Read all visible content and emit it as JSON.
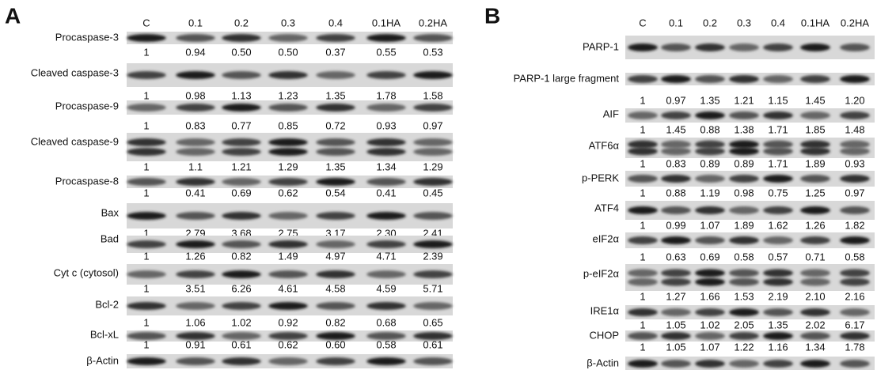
{
  "panels": [
    {
      "label": "A",
      "columns": [
        "C",
        "0.1",
        "0.2",
        "0.3",
        "0.4",
        "0.1HA",
        "0.2HA"
      ],
      "rows": [
        {
          "label": "Procaspase-3",
          "values": [
            "1",
            "0.94",
            "0.50",
            "0.50",
            "0.37",
            "0.55",
            "0.53"
          ]
        },
        {
          "label": "Cleaved caspase-3",
          "values": [
            "1",
            "0.98",
            "1.13",
            "1.23",
            "1.35",
            "1.78",
            "1.58"
          ]
        },
        {
          "label": "Procaspase-9",
          "values": [
            "1",
            "0.83",
            "0.77",
            "0.85",
            "0.72",
            "0.93",
            "0.97"
          ]
        },
        {
          "label": "Cleaved caspase-9",
          "values": [
            "1",
            "1.1",
            "1.21",
            "1.29",
            "1.35",
            "1.34",
            "1.29"
          ]
        },
        {
          "label": "Procaspase-8",
          "values": [
            "1",
            "0.41",
            "0.69",
            "0.62",
            "0.54",
            "0.41",
            "0.45"
          ]
        },
        {
          "label": "Bax",
          "values": [
            "1",
            "2.79",
            "3.68",
            "2.75",
            "3.17",
            "2.30",
            "2.41"
          ]
        },
        {
          "label": "Bad",
          "values": [
            "1",
            "1.26",
            "0.82",
            "1.49",
            "4.97",
            "4.71",
            "2.39"
          ]
        },
        {
          "label": "Cyt c (cytosol)",
          "values": [
            "1",
            "3.51",
            "6.26",
            "4.61",
            "4.58",
            "4.59",
            "5.71"
          ]
        },
        {
          "label": "Bcl-2",
          "values": [
            "1",
            "1.06",
            "1.02",
            "0.92",
            "0.82",
            "0.68",
            "0.65"
          ]
        },
        {
          "label": "Bcl-xL",
          "values": [
            "1",
            "0.91",
            "0.61",
            "0.62",
            "0.60",
            "0.58",
            "0.61"
          ]
        },
        {
          "label": "β-Actin"
        }
      ]
    },
    {
      "label": "B",
      "columns": [
        "C",
        "0.1",
        "0.2",
        "0.3",
        "0.4",
        "0.1HA",
        "0.2HA"
      ],
      "rows": [
        {
          "label": "PARP-1"
        },
        {
          "label": "PARP-1 large fragment",
          "values": [
            "1",
            "0.97",
            "1.35",
            "1.21",
            "1.15",
            "1.45",
            "1.20"
          ]
        },
        {
          "label": "AIF",
          "values": [
            "1",
            "1.45",
            "0.88",
            "1.38",
            "1.71",
            "1.85",
            "1.48"
          ]
        },
        {
          "label": "ATF6α",
          "values": [
            "1",
            "0.83",
            "0.89",
            "0.89",
            "1.71",
            "1.89",
            "0.93"
          ]
        },
        {
          "label": "p-PERK",
          "values": [
            "1",
            "0.88",
            "1.19",
            "0.98",
            "0.75",
            "1.25",
            "0.97"
          ]
        },
        {
          "label": "ATF4",
          "values": [
            "1",
            "0.99",
            "1.07",
            "1.89",
            "1.62",
            "1.26",
            "1.82"
          ]
        },
        {
          "label": "eIF2α",
          "values": [
            "1",
            "0.63",
            "0.69",
            "0.58",
            "0.57",
            "0.71",
            "0.58"
          ]
        },
        {
          "label": "p-eIF2α",
          "values": [
            "1",
            "1.27",
            "1.66",
            "1.53",
            "2.19",
            "2.10",
            "2.16"
          ]
        },
        {
          "label": "IRE1α",
          "values": [
            "1",
            "1.05",
            "1.02",
            "2.05",
            "1.35",
            "2.02",
            "6.17"
          ]
        },
        {
          "label": "CHOP",
          "values": [
            "1",
            "1.05",
            "1.07",
            "1.22",
            "1.16",
            "1.34",
            "1.78"
          ]
        },
        {
          "label": "β-Actin"
        }
      ]
    }
  ]
}
